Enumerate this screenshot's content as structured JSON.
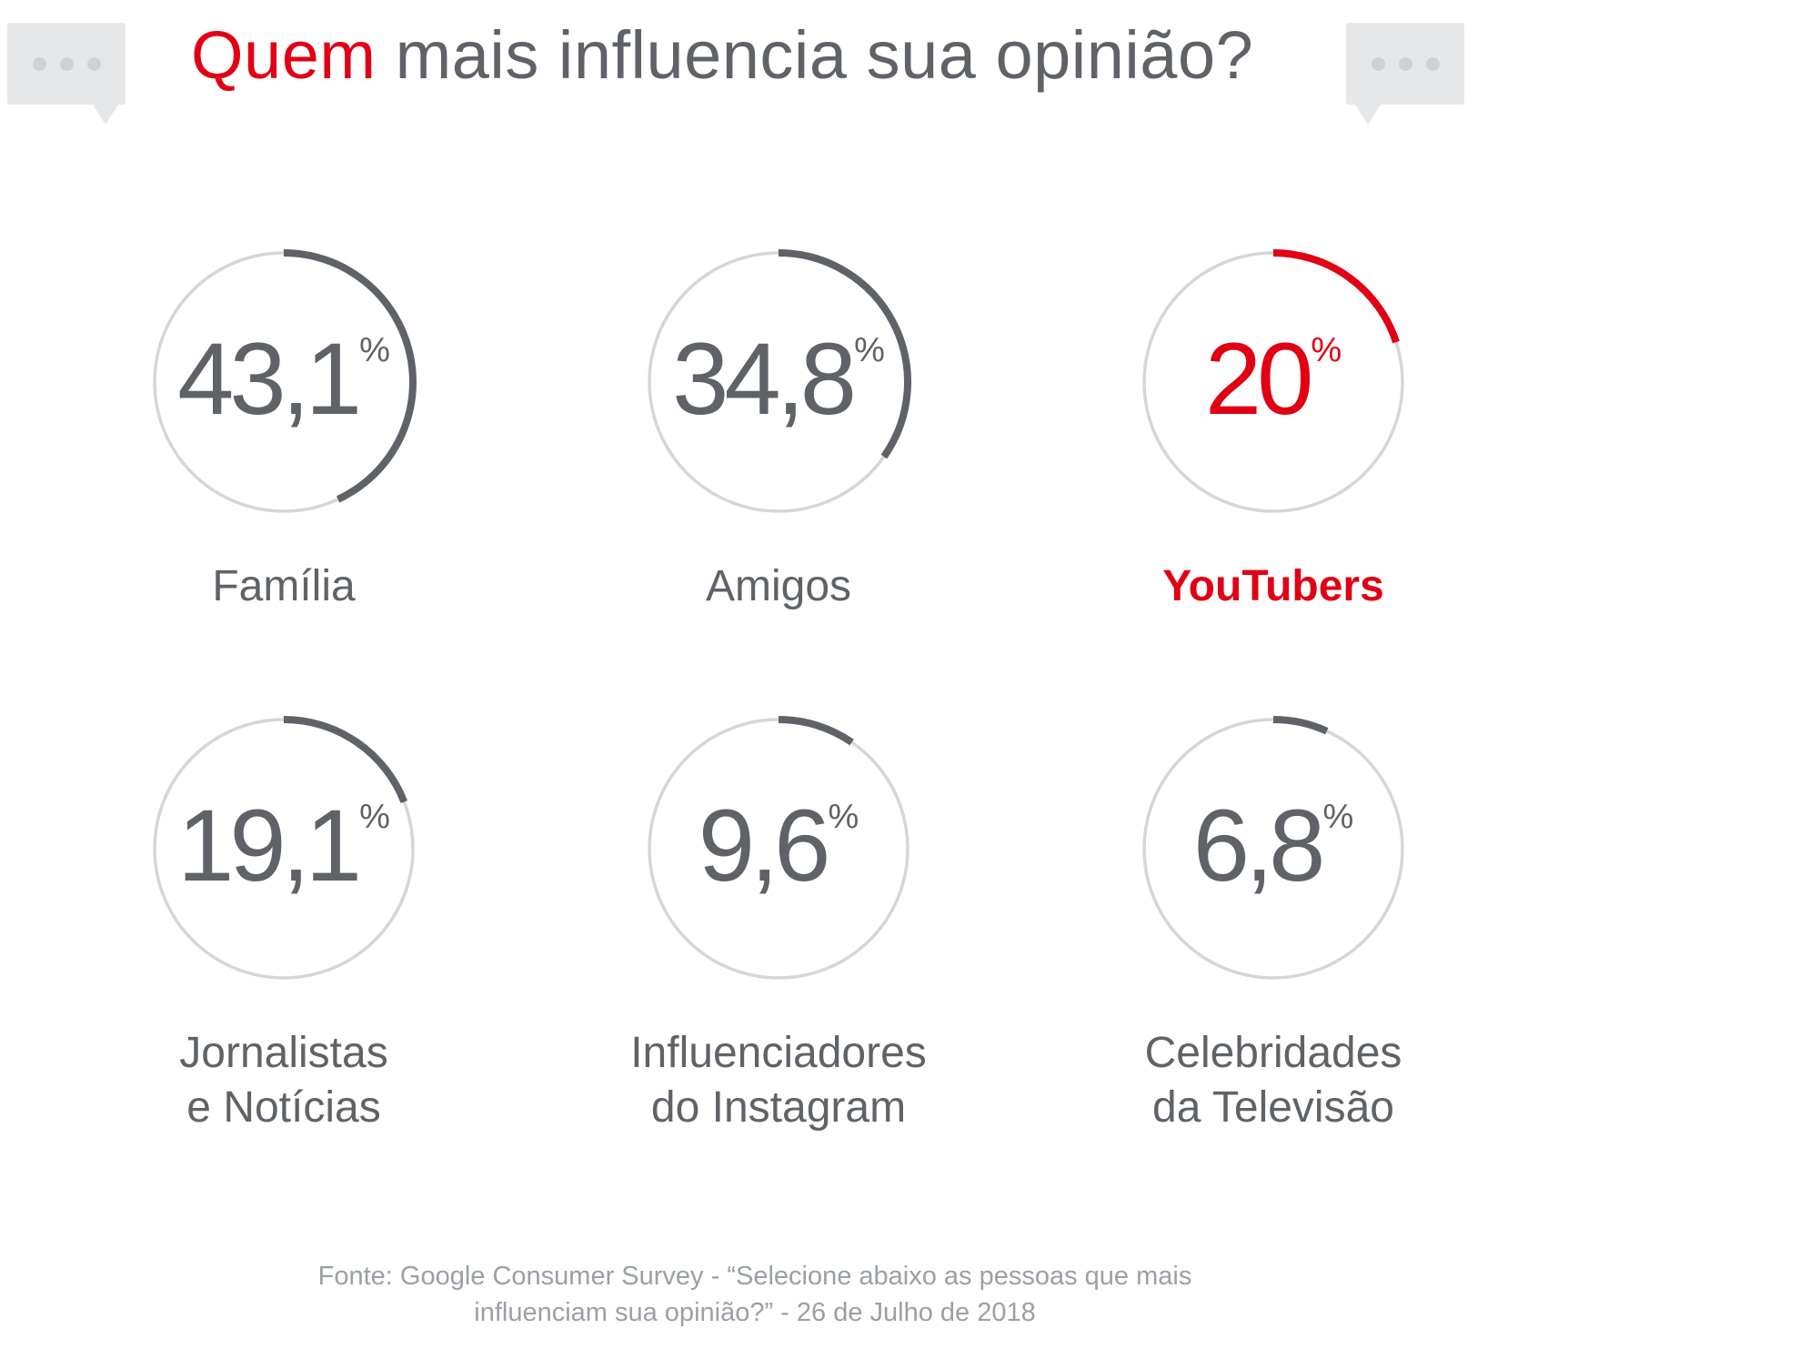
{
  "title": {
    "accent": "Quem",
    "rest": " mais influencia sua opinião?"
  },
  "colors": {
    "accent": "#e10014",
    "arc": "#5f6368",
    "ring": "#d3d8d6",
    "text": "#5f6368",
    "source": "#9aa0a6"
  },
  "chart_data": {
    "type": "radial-progress",
    "items": [
      {
        "label": "Família",
        "label_lines": [
          "Família"
        ],
        "value": 43.1,
        "display": "43,1",
        "unit": "%",
        "highlight": false
      },
      {
        "label": "Amigos",
        "label_lines": [
          "Amigos"
        ],
        "value": 34.8,
        "display": "34,8",
        "unit": "%",
        "highlight": false
      },
      {
        "label": "YouTubers",
        "label_lines": [
          "YouTubers"
        ],
        "value": 20,
        "display": "20",
        "unit": "%",
        "highlight": true
      },
      {
        "label": "Jornalistas e Notícias",
        "label_lines": [
          "Jornalistas",
          "e Notícias"
        ],
        "value": 19.1,
        "display": "19,1",
        "unit": "%",
        "highlight": false
      },
      {
        "label": "Influenciadores do Instagram",
        "label_lines": [
          "Influenciadores",
          "do Instagram"
        ],
        "value": 9.6,
        "display": "9,6",
        "unit": "%",
        "highlight": false
      },
      {
        "label": "Celebridades da Televisão",
        "label_lines": [
          "Celebridades",
          "da Televisão"
        ],
        "value": 6.8,
        "display": "6,8",
        "unit": "%",
        "highlight": false
      }
    ],
    "max": 100
  },
  "source": {
    "line1": "Fonte: Google Consumer Survey - “Selecione abaixo as pessoas que mais",
    "line2": "influenciam sua opinião?” - 26 de Julho de 2018"
  }
}
